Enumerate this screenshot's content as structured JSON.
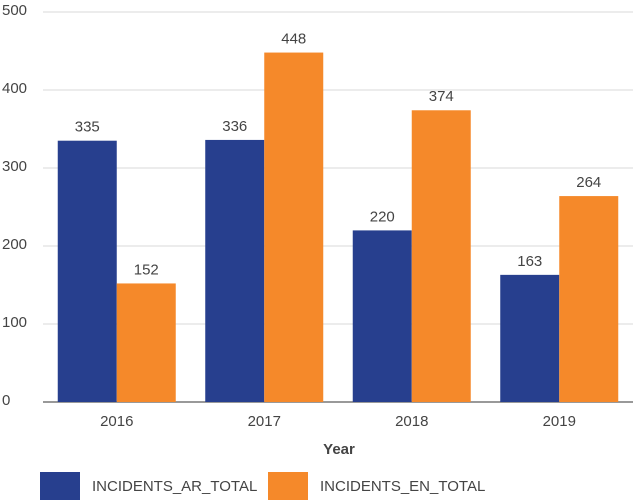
{
  "chart_data": {
    "type": "bar",
    "x_label": "Year",
    "categories": [
      "2016",
      "2017",
      "2018",
      "2019"
    ],
    "series": [
      {
        "name": "INCIDENTS_AR_TOTAL",
        "color": "#273f8e",
        "values": [
          335,
          336,
          220,
          163
        ]
      },
      {
        "name": "INCIDENTS_EN_TOTAL",
        "color": "#f5892a",
        "values": [
          152,
          448,
          374,
          264
        ]
      }
    ],
    "ylim": [
      0,
      500
    ],
    "yticks": [
      0,
      100,
      200,
      300,
      400,
      500
    ],
    "grid": true,
    "legend": "bottom"
  }
}
